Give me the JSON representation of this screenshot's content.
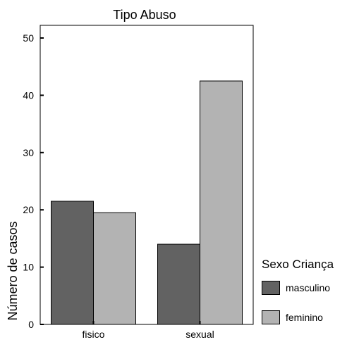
{
  "chart_data": {
    "type": "bar",
    "title": "Tipo Abuso",
    "xlabel": "",
    "ylabel": "Número de casos",
    "categories": [
      "fisico",
      "sexual"
    ],
    "series": [
      {
        "name": "masculino",
        "values": [
          21.5,
          14
        ],
        "color": "#626262"
      },
      {
        "name": "feminino",
        "values": [
          19.5,
          42.5
        ],
        "color": "#b3b3b3"
      }
    ],
    "ylim": [
      0,
      50
    ],
    "yticks": [
      0,
      10,
      20,
      30,
      40,
      50
    ],
    "grid": false,
    "legend": {
      "title": "Sexo Criança",
      "position": "right"
    }
  }
}
